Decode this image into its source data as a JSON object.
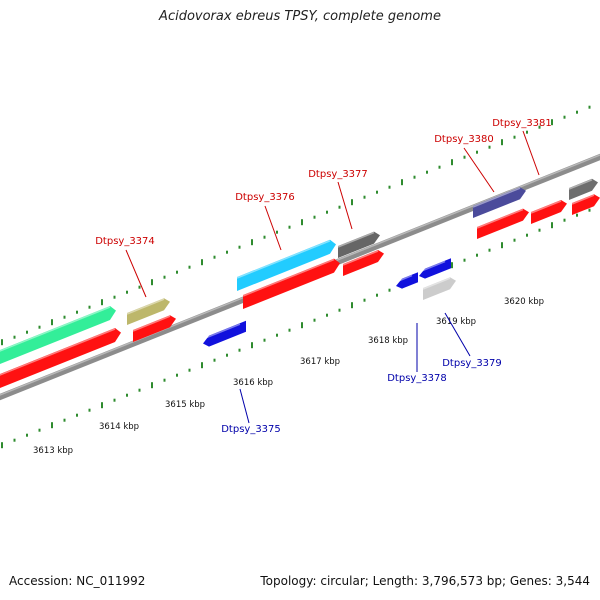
{
  "title": "Acidovorax ebreus TPSY, complete genome",
  "footer": {
    "accession": "Accession: NC_011992",
    "summary": "Topology: circular; Length: 3,796,573 bp; Genes: 3,544"
  },
  "colors": {
    "background": "#ffffff",
    "backbone": "#8c8c8c",
    "tick": "#2e8b2e",
    "upper_label": "#cc0000",
    "lower_label": "#0000aa",
    "cds_forward": "#ff1111",
    "cds_reverse": "#1111dd"
  },
  "kbp_labels": [
    "3613 kbp",
    "3614 kbp",
    "3615 kbp",
    "3616 kbp",
    "3617 kbp",
    "3618 kbp",
    "3619 kbp",
    "3620 kbp"
  ],
  "forward_genes": [
    {
      "name": "",
      "color": "#33ee99"
    },
    {
      "name": "Dtpsy_3374",
      "color": "#bdb76b"
    },
    {
      "name": "Dtpsy_3376",
      "color": "#22ccff"
    },
    {
      "name": "Dtpsy_3377",
      "color": "#666666"
    },
    {
      "name": "Dtpsy_3380",
      "color": "#4b4b9b"
    },
    {
      "name": "Dtpsy_3381",
      "color": "#6e6e6e"
    }
  ],
  "reverse_genes": [
    {
      "name": "Dtpsy_3375",
      "color": "#1111dd"
    },
    {
      "name": "Dtpsy_3378",
      "color": "#1111dd"
    },
    {
      "name": "Dtpsy_3379",
      "color": "#1111dd"
    },
    {
      "name": "",
      "color": "#cccccc"
    }
  ]
}
